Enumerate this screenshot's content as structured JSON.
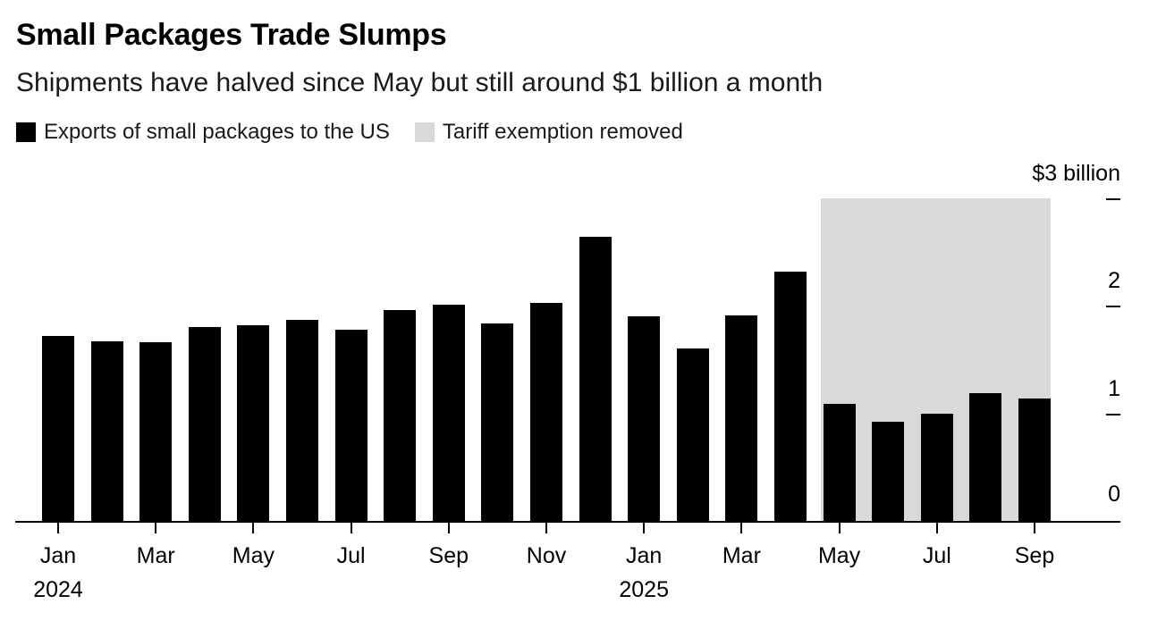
{
  "header": {
    "title": "Small Packages Trade Slumps",
    "subtitle": "Shipments have halved since May but still around $1 billion a month"
  },
  "legend": {
    "items": [
      {
        "label": "Exports of small packages to the US",
        "color": "#000000"
      },
      {
        "label": "Tariff exemption removed",
        "color": "#d9d9d9"
      }
    ]
  },
  "chart_data": {
    "type": "bar",
    "title": "Small Packages Trade Slumps",
    "subtitle": "Shipments have halved since May but still around $1 billion a month",
    "unit": "USD billions per month",
    "categories": [
      "Jan 2024",
      "Feb 2024",
      "Mar 2024",
      "Apr 2024",
      "May 2024",
      "Jun 2024",
      "Jul 2024",
      "Aug 2024",
      "Sep 2024",
      "Oct 2024",
      "Nov 2024",
      "Dec 2024",
      "Jan 2025",
      "Feb 2025",
      "Mar 2025",
      "Apr 2025",
      "May 2025",
      "Jun 2025",
      "Jul 2025",
      "Aug 2025",
      "Sep 2025"
    ],
    "series": [
      {
        "name": "Exports of small packages to the US",
        "values": [
          1.72,
          1.67,
          1.66,
          1.8,
          1.82,
          1.87,
          1.78,
          1.96,
          2.01,
          1.84,
          2.03,
          2.64,
          1.9,
          1.6,
          1.91,
          2.32,
          1.09,
          0.92,
          1.0,
          1.19,
          1.14
        ]
      }
    ],
    "bar_color": "#000000",
    "axis_color": "#000000",
    "grid": false,
    "legend_position": "top-left",
    "ylim": [
      0,
      3
    ],
    "yticks": [
      {
        "value": 0,
        "label": "0"
      },
      {
        "value": 1,
        "label": "1"
      },
      {
        "value": 2,
        "label": "2"
      },
      {
        "value": 3,
        "label": "$3 billion"
      }
    ],
    "xticks": [
      {
        "index": 0,
        "label": "Jan",
        "year": "2024"
      },
      {
        "index": 2,
        "label": "Mar"
      },
      {
        "index": 4,
        "label": "May"
      },
      {
        "index": 6,
        "label": "Jul"
      },
      {
        "index": 8,
        "label": "Sep"
      },
      {
        "index": 10,
        "label": "Nov"
      },
      {
        "index": 12,
        "label": "Jan",
        "year": "2025"
      },
      {
        "index": 14,
        "label": "Mar"
      },
      {
        "index": 16,
        "label": "May"
      },
      {
        "index": 18,
        "label": "Jul"
      },
      {
        "index": 20,
        "label": "Sep"
      }
    ],
    "highlight_region": {
      "label": "Tariff exemption removed",
      "color": "#d9d9d9",
      "start_category": "May 2025",
      "end_category": "Sep 2025",
      "start_index": 16,
      "end_index": 20,
      "top_value": 3
    }
  }
}
